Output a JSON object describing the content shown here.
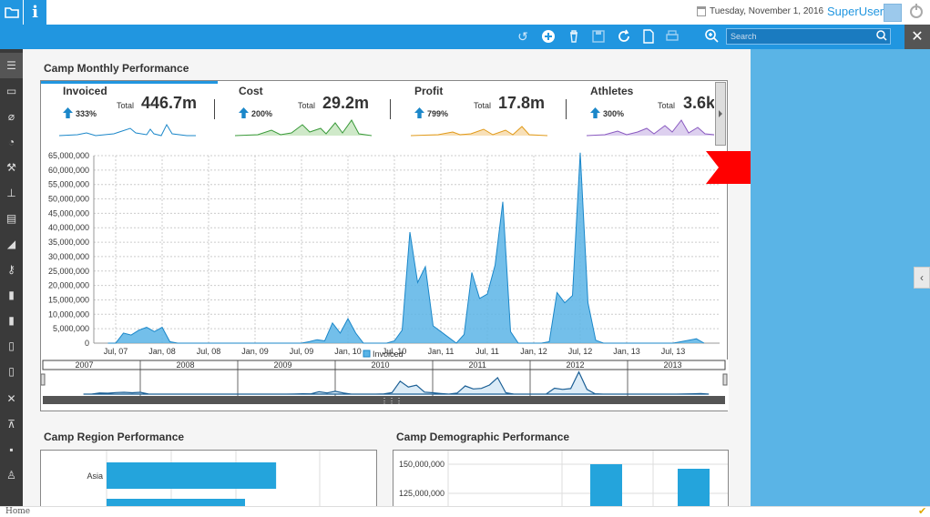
{
  "topbar": {
    "date": "Tuesday, November 1, 2016",
    "user": "SuperUser",
    "info_label": "i"
  },
  "toolbar": {
    "search_placeholder": "Search"
  },
  "sections": {
    "monthly": "Camp Monthly Performance",
    "region": "Camp Region Performance",
    "demographic": "Camp Demographic Performance"
  },
  "kpis": [
    {
      "name": "Invoiced",
      "total_label": "Total",
      "total": "446.7m",
      "change": "333%",
      "color": "#1b87c9"
    },
    {
      "name": "Cost",
      "total_label": "Total",
      "total": "29.2m",
      "change": "200%",
      "color": "#3a9a3a"
    },
    {
      "name": "Profit",
      "total_label": "Total",
      "total": "17.8m",
      "change": "799%",
      "color": "#e09a1a"
    },
    {
      "name": "Athletes",
      "total_label": "Total",
      "total": "3.6k",
      "change": "300%",
      "color": "#8a5ac0"
    }
  ],
  "chart_data": [
    {
      "type": "area",
      "series": [
        {
          "name": "Invoiced",
          "points": [
            [
              "Jun 07",
              0
            ],
            [
              "Jul 07",
              0
            ],
            [
              "Aug 07",
              3500000
            ],
            [
              "Sep 07",
              2800000
            ],
            [
              "Oct 07",
              4500000
            ],
            [
              "Nov 07",
              5500000
            ],
            [
              "Dec 07",
              4000000
            ],
            [
              "Jan 08",
              5500000
            ],
            [
              "Feb 08",
              500000
            ],
            [
              "Mar 08",
              0
            ],
            [
              "Jan 09",
              0
            ],
            [
              "Jul 09",
              0
            ],
            [
              "Aug 09",
              500000
            ],
            [
              "Sep 09",
              1200000
            ],
            [
              "Oct 09",
              800000
            ],
            [
              "Nov 09",
              7000000
            ],
            [
              "Dec 09",
              3500000
            ],
            [
              "Jan 10",
              8500000
            ],
            [
              "Feb 10",
              3500000
            ],
            [
              "Mar 10",
              0
            ],
            [
              "Jun 10",
              0
            ],
            [
              "Jul 10",
              800000
            ],
            [
              "Aug 10",
              4500000
            ],
            [
              "Sep 10",
              38500000
            ],
            [
              "Oct 10",
              21000000
            ],
            [
              "Nov 10",
              26500000
            ],
            [
              "Dec 10",
              6000000
            ],
            [
              "Jan 11",
              4000000
            ],
            [
              "Feb 11",
              2000000
            ],
            [
              "Mar 11",
              0
            ],
            [
              "Apr 11",
              3000000
            ],
            [
              "May 11",
              24500000
            ],
            [
              "Jun 11",
              15500000
            ],
            [
              "Jul 11",
              17000000
            ],
            [
              "Aug 11",
              27000000
            ],
            [
              "Sep 11",
              49000000
            ],
            [
              "Oct 11",
              4000000
            ],
            [
              "Nov 11",
              0
            ],
            [
              "Feb 12",
              0
            ],
            [
              "Mar 12",
              500000
            ],
            [
              "Apr 12",
              17500000
            ],
            [
              "May 12",
              14000000
            ],
            [
              "Jun 12",
              16500000
            ],
            [
              "Jul 12",
              66000000
            ],
            [
              "Aug 12",
              14000000
            ],
            [
              "Sep 12",
              1000000
            ],
            [
              "Oct 12",
              0
            ],
            [
              "Jan 13",
              0
            ],
            [
              "Jul 13",
              0
            ],
            [
              "Oct 13",
              1500000
            ],
            [
              "Nov 13",
              0
            ]
          ]
        }
      ],
      "y_ticks": [
        "65,000,000",
        "60,000,000",
        "55,000,000",
        "50,000,000",
        "45,000,000",
        "40,000,000",
        "35,000,000",
        "30,000,000",
        "25,000,000",
        "20,000,000",
        "15,000,000",
        "10,000,000",
        "5,000,000",
        "0"
      ],
      "x_ticks": [
        "Jul, 07",
        "Jan, 08",
        "Jul, 08",
        "Jan, 09",
        "Jul, 09",
        "Jan, 10",
        "Jul, 10",
        "Jan, 11",
        "Jul, 11",
        "Jan, 12",
        "Jul, 12",
        "Jan, 13",
        "Jul, 13"
      ],
      "ylim": [
        0,
        65000000
      ],
      "grid": true,
      "legend": "bottom-center",
      "navigator_years": [
        "2007",
        "2008",
        "2009",
        "2010",
        "2011",
        "2012",
        "2013"
      ]
    },
    {
      "type": "bar",
      "categories": [
        "Asia"
      ],
      "values": [
        0.66
      ],
      "note": "partially visible horizontal bar chart"
    },
    {
      "type": "bar",
      "y_ticks": [
        "150,000,000",
        "125,000,000"
      ]
    }
  ],
  "statusbar": {
    "home": "Home"
  },
  "colors": {
    "accent": "#2196e0",
    "series": "#5ab4e6",
    "series_line": "#1b87c9"
  }
}
